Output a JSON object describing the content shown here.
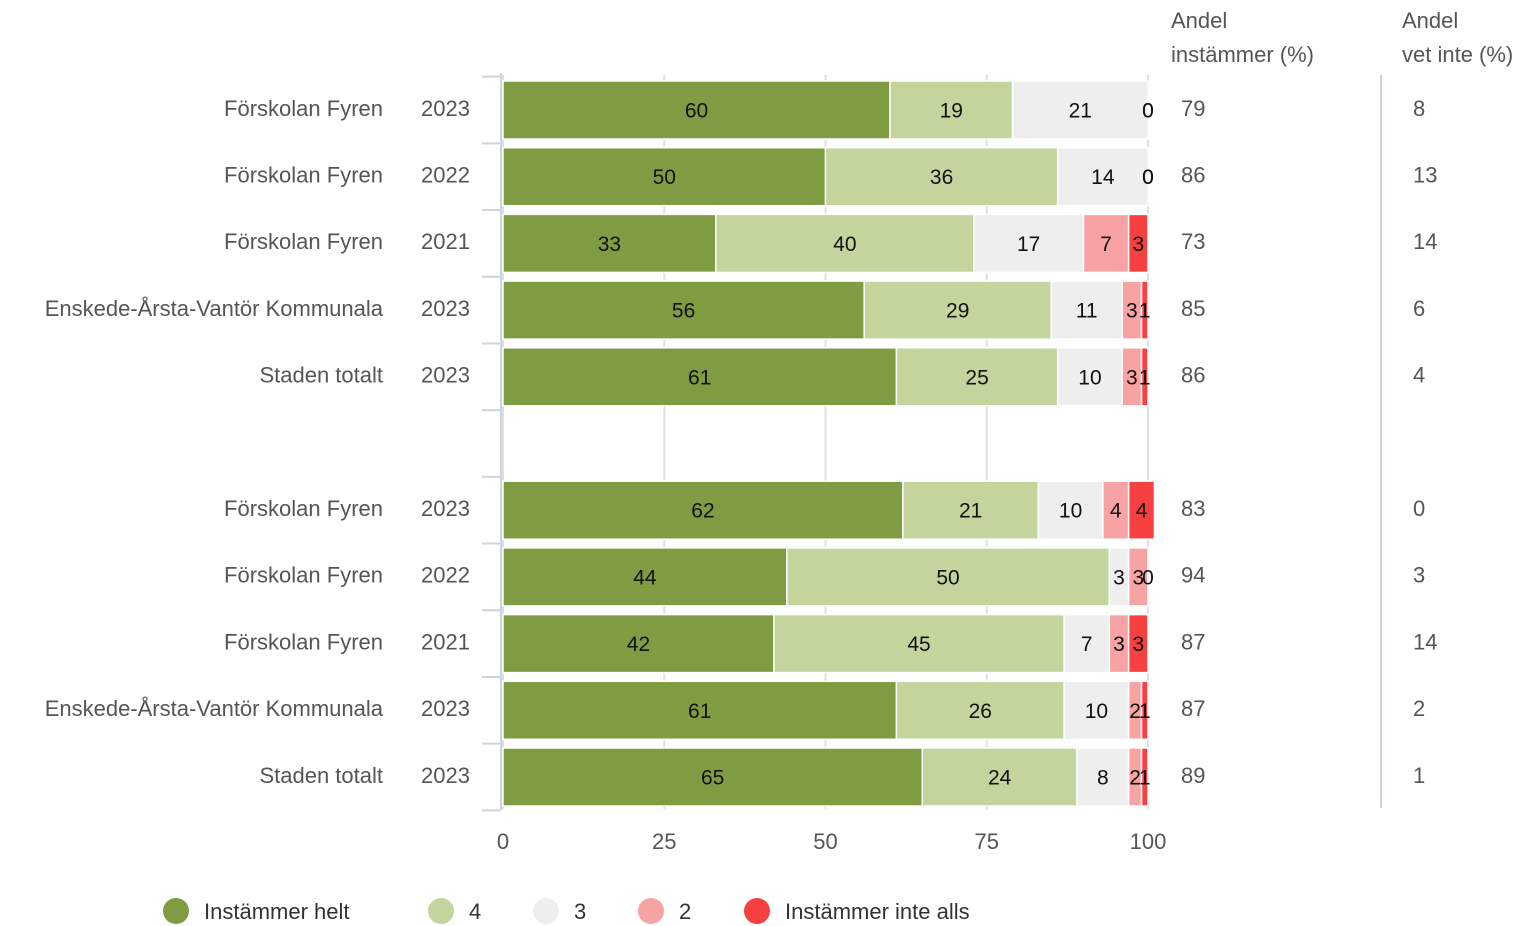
{
  "chart_data": {
    "type": "stacked_bar_horizontal",
    "categories": [
      "Förskolan Fyren",
      "Förskolan Fyren",
      "Förskolan Fyren",
      "Enskede-Årsta-Vantör Kommunala",
      "Staden totalt",
      null,
      "Förskolan Fyren",
      "Förskolan Fyren",
      "Förskolan Fyren",
      "Enskede-Årsta-Vantör Kommunala",
      "Staden totalt"
    ],
    "sub_categories": [
      "2023",
      "2022",
      "2021",
      "2023",
      "2023",
      null,
      "2023",
      "2022",
      "2021",
      "2023",
      "2023"
    ],
    "series": [
      {
        "name": "Instämmer helt",
        "color": "#7f9c42",
        "values": [
          60,
          50,
          33,
          56,
          61,
          null,
          62,
          44,
          42,
          61,
          65
        ]
      },
      {
        "name": "4",
        "color": "#c3d59c",
        "values": [
          19,
          36,
          40,
          29,
          25,
          null,
          21,
          50,
          45,
          26,
          24
        ]
      },
      {
        "name": "3",
        "color": "#eeeeee",
        "values": [
          21,
          14,
          17,
          11,
          10,
          null,
          10,
          3,
          7,
          10,
          8
        ]
      },
      {
        "name": "2",
        "color": "#f8a3a3",
        "values": [
          0,
          0,
          7,
          3,
          3,
          null,
          4,
          3,
          3,
          2,
          2
        ]
      },
      {
        "name": "Instämmer inte alls",
        "color": "#f74040",
        "values": [
          0,
          0,
          3,
          1,
          1,
          null,
          4,
          0,
          3,
          1,
          1
        ]
      }
    ],
    "xlim": [
      0,
      100
    ],
    "xticks": [
      0,
      25,
      50,
      75,
      100
    ],
    "grid": true,
    "legend": "bottom",
    "columns": [
      {
        "title": [
          "Andel",
          "instämmer (%)"
        ],
        "values": [
          79,
          86,
          73,
          85,
          86,
          null,
          83,
          94,
          87,
          87,
          89
        ]
      },
      {
        "title": [
          "Andel",
          "vet inte (%)"
        ],
        "values": [
          8,
          13,
          14,
          6,
          4,
          null,
          0,
          3,
          14,
          2,
          1
        ]
      }
    ]
  }
}
